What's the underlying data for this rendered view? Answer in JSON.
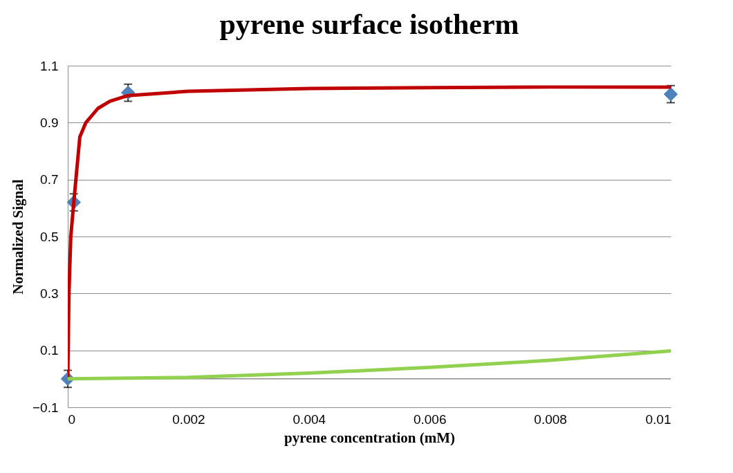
{
  "chart_data": {
    "type": "scatter",
    "title": "pyrene surface isotherm",
    "xlabel": "pyrene concentration (mM)",
    "ylabel": "Normalized Signal",
    "xlim": [
      0,
      0.01
    ],
    "xticks": [
      0,
      0.002,
      0.004,
      0.006,
      0.008,
      0.01
    ],
    "ylim": [
      -0.1,
      1.1
    ],
    "yticks": [
      -0.1,
      0.1,
      0.3,
      0.5,
      0.7,
      0.9,
      1.1
    ],
    "grid": "y",
    "ref_lines": [
      {
        "axis": "y",
        "value": 0
      }
    ],
    "series": [
      {
        "color": "#4f81bd",
        "marker": "diamond",
        "x": [
          0,
          0.0001,
          0.001,
          0.01
        ],
        "values": [
          0,
          0.62,
          1.005,
          1.0
        ],
        "errors": [
          0.03,
          0.03,
          0.03,
          0.03
        ]
      },
      {
        "type": "line",
        "color": "#c00000",
        "marker": "none",
        "x": [
          0,
          2e-05,
          5e-05,
          0.0001,
          0.0002,
          0.0003,
          0.0005,
          0.0007,
          0.001,
          0.002,
          0.004,
          0.006,
          0.008,
          0.01
        ],
        "values": [
          0,
          0.3,
          0.5,
          0.62,
          0.85,
          0.9,
          0.95,
          0.975,
          0.995,
          1.01,
          1.02,
          1.023,
          1.025,
          1.025
        ]
      },
      {
        "type": "line",
        "color": "#92d050",
        "marker": "none",
        "x": [
          0,
          0.002,
          0.004,
          0.006,
          0.008,
          0.01
        ],
        "values": [
          0,
          0.005,
          0.02,
          0.04,
          0.065,
          0.098
        ]
      }
    ]
  }
}
